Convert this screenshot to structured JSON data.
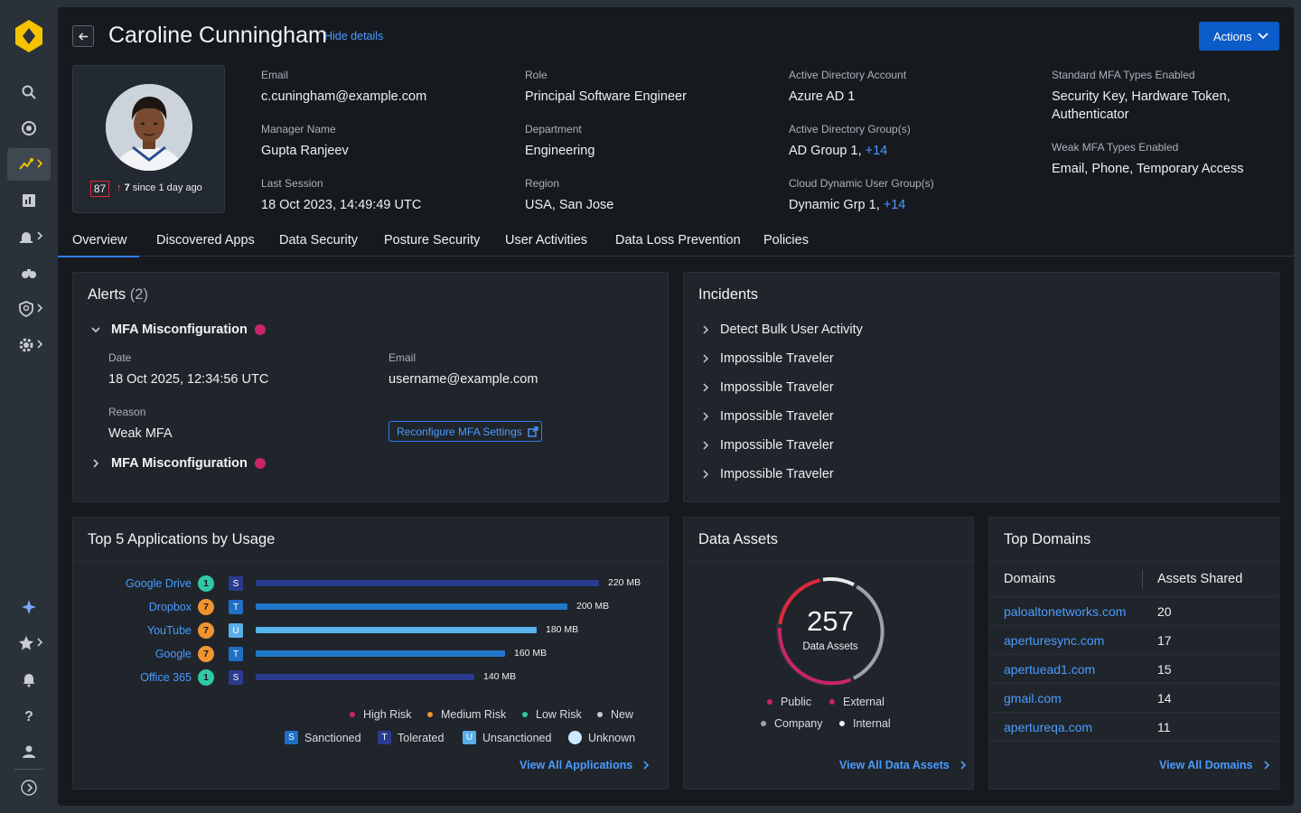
{
  "user": {
    "name": "Caroline Cunningham",
    "hide_details_label": "Hide details",
    "actions_label": "Actions",
    "risk_score": "87",
    "risk_change": "7",
    "risk_since": "since 1 day ago"
  },
  "details": {
    "email": {
      "label": "Email",
      "value": "c.cuningham@example.com"
    },
    "manager": {
      "label": "Manager Name",
      "value": "Gupta Ranjeev"
    },
    "last_session": {
      "label": "Last Session",
      "value": "18 Oct 2023, 14:49:49 UTC"
    },
    "role": {
      "label": "Role",
      "value": "Principal Software Engineer"
    },
    "department": {
      "label": "Department",
      "value": "Engineering"
    },
    "region": {
      "label": "Region",
      "value": "USA, San Jose"
    },
    "ad_account": {
      "label": "Active Directory Account",
      "value": "Azure AD 1"
    },
    "ad_groups": {
      "label": "Active Directory Group(s)",
      "value": "AD Group 1,",
      "more": "+14"
    },
    "cloud_groups": {
      "label": "Cloud Dynamic User Group(s)",
      "value": "Dynamic Grp 1,",
      "more": "+14"
    },
    "std_mfa": {
      "label": "Standard MFA Types Enabled",
      "line1": "Security Key, Hardware Token,",
      "line2": "Authenticator"
    },
    "weak_mfa": {
      "label": "Weak MFA Types Enabled",
      "value": "Email, Phone, Temporary Access"
    }
  },
  "tabs": [
    "Overview",
    "Discovered Apps",
    "Data Security",
    "Posture Security",
    "User Activities",
    "Data Loss Prevention",
    "Policies"
  ],
  "alerts": {
    "title": "Alerts",
    "count": "(2)",
    "items": [
      {
        "title": "MFA Misconfiguration",
        "date_label": "Date",
        "date": "18 Oct 2025, 12:34:56 UTC",
        "email_label": "Email",
        "email": "username@example.com",
        "reason_label": "Reason",
        "reason": "Weak MFA",
        "button": "Reconfigure MFA Settings"
      },
      {
        "title": "MFA Misconfiguration"
      }
    ]
  },
  "incidents": {
    "title": "Incidents",
    "items": [
      "Detect Bulk User Activity",
      "Impossible Traveler",
      "Impossible Traveler",
      "Impossible Traveler",
      "Impossible Traveler",
      "Impossible Traveler"
    ]
  },
  "top_apps": {
    "title": "Top 5 Applications by Usage",
    "view_all": "View All Applications",
    "legend_risk": [
      "High Risk",
      "Medium Risk",
      "Low Risk",
      "New"
    ],
    "legend_sanction": [
      "Sanctioned",
      "Tolerated",
      "Unsanctioned",
      "Unknown"
    ]
  },
  "data_assets": {
    "title": "Data Assets",
    "total": "257",
    "subtitle": "Data Assets",
    "legend": [
      "Public",
      "External",
      "Company",
      "Internal"
    ],
    "view_all": "View All Data Assets"
  },
  "domains": {
    "title": "Top Domains",
    "col1": "Domains",
    "col2": "Assets Shared",
    "rows": [
      {
        "domain": "paloaltonetworks.com",
        "count": "20"
      },
      {
        "domain": "aperturesync.com",
        "count": "17"
      },
      {
        "domain": "apertuead1.com",
        "count": "15"
      },
      {
        "domain": "gmail.com",
        "count": "14"
      },
      {
        "domain": "apertureqa.com",
        "count": "11"
      }
    ],
    "view_all": "View All Domains"
  },
  "chart_data": {
    "type": "bar",
    "orientation": "horizontal",
    "title": "Top 5 Applications by Usage",
    "unit": "MB",
    "categories": [
      "Google Drive",
      "Dropbox",
      "YouTube",
      "Google",
      "Office 365"
    ],
    "values": [
      220,
      200,
      180,
      160,
      140
    ],
    "value_labels": [
      "220 MB",
      "200 MB",
      "180 MB",
      "160 MB",
      "140 MB"
    ],
    "risk_scores": [
      "1",
      "7",
      "7",
      "7",
      "1"
    ],
    "sanction_status": [
      "S",
      "T",
      "U",
      "T",
      "S"
    ]
  },
  "colors": {
    "accent": "#2f7bf5",
    "link": "#4b9bff",
    "high_risk": "#c9246c",
    "medium_risk": "#f0942f",
    "low_risk": "#2fc7a6",
    "sanctioned": "#1f6fc4",
    "unsanctioned": "#5aaee8",
    "bar_sanctioned": "#2a3b8f",
    "bar_tolerated": "#2177c9",
    "bar_unsanctioned": "#55b2ea"
  }
}
